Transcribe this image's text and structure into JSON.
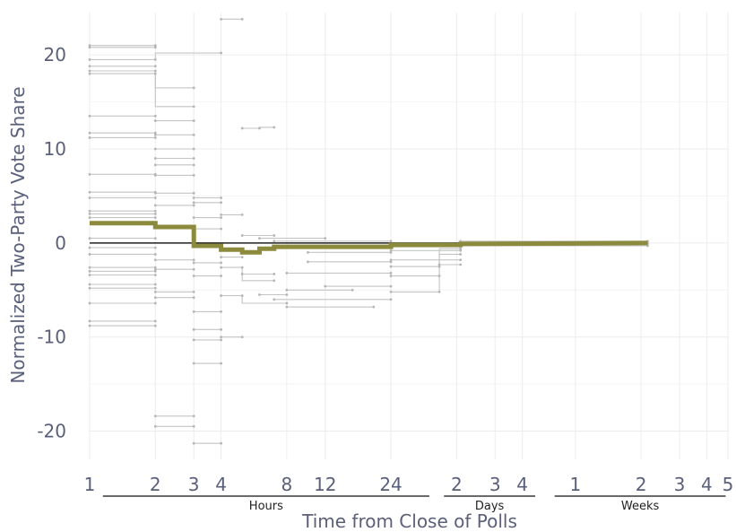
{
  "chart_data": {
    "type": "line",
    "title": "",
    "xlabel": "Time from Close of Polls",
    "ylabel": "Normalized Two-Party Vote Share",
    "x_scale": "log",
    "x_unit": "hours",
    "xlim": [
      1,
      840
    ],
    "ylim": [
      -23,
      24.5
    ],
    "grid": true,
    "legend": "none",
    "colors": {
      "mean": "#8c8a3c",
      "unit": "#c4c4c4",
      "zero": "#222222",
      "grid": "#ececec",
      "text": "#5a607a"
    },
    "y_ticks": [
      -20,
      -10,
      0,
      10,
      20
    ],
    "x_ticks": [
      {
        "label": "1",
        "hours": 1
      },
      {
        "label": "2",
        "hours": 2
      },
      {
        "label": "3",
        "hours": 3
      },
      {
        "label": "4",
        "hours": 4
      },
      {
        "label": "8",
        "hours": 8
      },
      {
        "label": "12",
        "hours": 12
      },
      {
        "label": "24",
        "hours": 24
      },
      {
        "label": "2",
        "hours": 48
      },
      {
        "label": "3",
        "hours": 72
      },
      {
        "label": "4",
        "hours": 96
      },
      {
        "label": "1",
        "hours": 168
      },
      {
        "label": "2",
        "hours": 336
      },
      {
        "label": "3",
        "hours": 504
      },
      {
        "label": "4",
        "hours": 672
      },
      {
        "label": "5",
        "hours": 840
      }
    ],
    "x_groups": [
      {
        "label": "Hours",
        "from": 1.15,
        "to": 36
      },
      {
        "label": "Days",
        "from": 42,
        "to": 110
      },
      {
        "label": "Weeks",
        "from": 135,
        "to": 820
      }
    ],
    "mean_series": {
      "name": "",
      "x": [
        1,
        2,
        2,
        3,
        3,
        4,
        4,
        5,
        5,
        6,
        6,
        7,
        7,
        24,
        24,
        50,
        50,
        360
      ],
      "y": [
        2.1,
        2.1,
        1.7,
        1.7,
        -0.3,
        -0.3,
        -0.7,
        -0.7,
        -1.0,
        -1.0,
        -0.6,
        -0.6,
        -0.4,
        -0.4,
        -0.2,
        -0.2,
        -0.1,
        0.0
      ]
    },
    "unit_series": [
      {
        "x": [
          1,
          2
        ],
        "y": [
          21.0,
          21.0
        ]
      },
      {
        "x": [
          1,
          2
        ],
        "y": [
          20.8,
          20.8
        ]
      },
      {
        "x": [
          1,
          2,
          2,
          4
        ],
        "y": [
          19.5,
          19.5,
          20.2,
          20.2
        ]
      },
      {
        "x": [
          1,
          2
        ],
        "y": [
          18.8,
          18.8
        ]
      },
      {
        "x": [
          1,
          2,
          2,
          3
        ],
        "y": [
          18.3,
          18.3,
          16.5,
          16.5
        ]
      },
      {
        "x": [
          1,
          2,
          2,
          3
        ],
        "y": [
          18.0,
          18.0,
          14.5,
          14.5
        ]
      },
      {
        "x": [
          1,
          2
        ],
        "y": [
          13.5,
          13.5
        ]
      },
      {
        "x": [
          1,
          2
        ],
        "y": [
          11.7,
          11.7
        ]
      },
      {
        "x": [
          1,
          2
        ],
        "y": [
          11.2,
          11.2
        ]
      },
      {
        "x": [
          1,
          2
        ],
        "y": [
          7.3,
          7.3
        ]
      },
      {
        "x": [
          1,
          2
        ],
        "y": [
          5.4,
          5.4
        ]
      },
      {
        "x": [
          1,
          2
        ],
        "y": [
          4.8,
          4.8
        ]
      },
      {
        "x": [
          1,
          2
        ],
        "y": [
          3.4,
          3.4
        ]
      },
      {
        "x": [
          1,
          2
        ],
        "y": [
          3.1,
          3.1
        ]
      },
      {
        "x": [
          1,
          2
        ],
        "y": [
          2.7,
          2.7
        ]
      },
      {
        "x": [
          1,
          2
        ],
        "y": [
          0.5,
          0.5
        ]
      },
      {
        "x": [
          1,
          2
        ],
        "y": [
          -0.5,
          -0.5
        ]
      },
      {
        "x": [
          1,
          2
        ],
        "y": [
          -1.2,
          -1.2
        ]
      },
      {
        "x": [
          1,
          2
        ],
        "y": [
          -2.6,
          -2.6
        ]
      },
      {
        "x": [
          1,
          2
        ],
        "y": [
          -3.0,
          -3.0
        ]
      },
      {
        "x": [
          1,
          2
        ],
        "y": [
          -3.4,
          -3.4
        ]
      },
      {
        "x": [
          1,
          2
        ],
        "y": [
          -4.4,
          -4.4
        ]
      },
      {
        "x": [
          1,
          2
        ],
        "y": [
          -4.8,
          -4.8
        ]
      },
      {
        "x": [
          1,
          2
        ],
        "y": [
          -6.4,
          -6.4
        ]
      },
      {
        "x": [
          1,
          2
        ],
        "y": [
          -8.3,
          -8.3
        ]
      },
      {
        "x": [
          1,
          2
        ],
        "y": [
          -8.8,
          -8.8
        ]
      },
      {
        "x": [
          2,
          3
        ],
        "y": [
          13.0,
          13.0
        ]
      },
      {
        "x": [
          2,
          3
        ],
        "y": [
          11.5,
          11.5
        ]
      },
      {
        "x": [
          2,
          3
        ],
        "y": [
          10.0,
          10.0
        ]
      },
      {
        "x": [
          2,
          3
        ],
        "y": [
          9.0,
          9.0
        ]
      },
      {
        "x": [
          2,
          3
        ],
        "y": [
          8.3,
          8.3
        ]
      },
      {
        "x": [
          2,
          3
        ],
        "y": [
          7.2,
          7.2
        ]
      },
      {
        "x": [
          2,
          3
        ],
        "y": [
          5.3,
          5.3
        ]
      },
      {
        "x": [
          2,
          3
        ],
        "y": [
          4.0,
          4.0
        ]
      },
      {
        "x": [
          2,
          3
        ],
        "y": [
          -1.8,
          -1.8
        ]
      },
      {
        "x": [
          2,
          3
        ],
        "y": [
          -2.8,
          -2.8
        ]
      },
      {
        "x": [
          2,
          3
        ],
        "y": [
          -5.2,
          -5.2
        ]
      },
      {
        "x": [
          2,
          3
        ],
        "y": [
          -5.8,
          -5.8
        ]
      },
      {
        "x": [
          2,
          3
        ],
        "y": [
          -18.4,
          -18.4
        ]
      },
      {
        "x": [
          2,
          3
        ],
        "y": [
          -19.5,
          -19.5
        ]
      },
      {
        "x": [
          3,
          4
        ],
        "y": [
          4.8,
          4.8
        ]
      },
      {
        "x": [
          3,
          4
        ],
        "y": [
          4.3,
          4.3
        ]
      },
      {
        "x": [
          3,
          4
        ],
        "y": [
          2.7,
          2.7
        ]
      },
      {
        "x": [
          3,
          4
        ],
        "y": [
          1.5,
          1.5
        ]
      },
      {
        "x": [
          3,
          4
        ],
        "y": [
          -2.1,
          -2.1
        ]
      },
      {
        "x": [
          3,
          4
        ],
        "y": [
          -3.5,
          -3.5
        ]
      },
      {
        "x": [
          3,
          4
        ],
        "y": [
          -7.3,
          -7.3
        ]
      },
      {
        "x": [
          3,
          4
        ],
        "y": [
          -9.2,
          -9.2
        ]
      },
      {
        "x": [
          3,
          4
        ],
        "y": [
          -10.3,
          -10.3
        ]
      },
      {
        "x": [
          3,
          4
        ],
        "y": [
          -12.8,
          -12.8
        ]
      },
      {
        "x": [
          3,
          4
        ],
        "y": [
          -21.3,
          -21.3
        ]
      },
      {
        "x": [
          4,
          5
        ],
        "y": [
          23.8,
          23.8
        ]
      },
      {
        "x": [
          4,
          5
        ],
        "y": [
          3.0,
          3.0
        ]
      },
      {
        "x": [
          4,
          5
        ],
        "y": [
          -1.5,
          -1.5
        ]
      },
      {
        "x": [
          4,
          5
        ],
        "y": [
          -10.0,
          -10.0
        ]
      },
      {
        "x": [
          4,
          5,
          5,
          7
        ],
        "y": [
          -2.6,
          -2.6,
          -4.0,
          -4.0
        ]
      },
      {
        "x": [
          4,
          5,
          5,
          8
        ],
        "y": [
          -5.6,
          -5.6,
          -6.4,
          -6.4
        ]
      },
      {
        "x": [
          5,
          6,
          6,
          7
        ],
        "y": [
          12.2,
          12.2,
          12.3,
          12.3
        ]
      },
      {
        "x": [
          5,
          7
        ],
        "y": [
          0.8,
          0.8
        ]
      },
      {
        "x": [
          5,
          7
        ],
        "y": [
          -3.3,
          -3.3
        ]
      },
      {
        "x": [
          6,
          8
        ],
        "y": [
          -5.5,
          -5.5
        ]
      },
      {
        "x": [
          6,
          12
        ],
        "y": [
          0.5,
          0.5
        ]
      },
      {
        "x": [
          7,
          24
        ],
        "y": [
          -6.0,
          -6.0
        ]
      },
      {
        "x": [
          7,
          24
        ],
        "y": [
          0.2,
          0.2
        ]
      },
      {
        "x": [
          8,
          24
        ],
        "y": [
          -3.2,
          -3.2
        ]
      },
      {
        "x": [
          8,
          16
        ],
        "y": [
          -5.0,
          -5.0
        ]
      },
      {
        "x": [
          8,
          20
        ],
        "y": [
          -6.8,
          -6.8
        ]
      },
      {
        "x": [
          10,
          24
        ],
        "y": [
          -1.0,
          -1.0
        ]
      },
      {
        "x": [
          10,
          24
        ],
        "y": [
          -2.0,
          -2.0
        ]
      },
      {
        "x": [
          12,
          24
        ],
        "y": [
          -4.6,
          -4.6
        ]
      },
      {
        "x": [
          12,
          24
        ],
        "y": [
          -0.3,
          -0.3
        ]
      },
      {
        "x": [
          24,
          40,
          40,
          50
        ],
        "y": [
          -5.2,
          -5.2,
          -1.2,
          -1.2
        ]
      },
      {
        "x": [
          24,
          40
        ],
        "y": [
          -3.5,
          -3.5
        ]
      },
      {
        "x": [
          24,
          40,
          40,
          50
        ],
        "y": [
          -2.5,
          -2.5,
          -0.6,
          -0.6
        ]
      },
      {
        "x": [
          24,
          50
        ],
        "y": [
          -1.8,
          -1.8
        ]
      },
      {
        "x": [
          24,
          50
        ],
        "y": [
          -0.8,
          -0.8
        ]
      },
      {
        "x": [
          24,
          50
        ],
        "y": [
          -0.4,
          -0.4
        ]
      },
      {
        "x": [
          40,
          50
        ],
        "y": [
          -2.3,
          -2.3
        ]
      },
      {
        "x": [
          50,
          360
        ],
        "y": [
          -0.3,
          -0.3
        ]
      },
      {
        "x": [
          50,
          360
        ],
        "y": [
          -0.1,
          -0.1
        ]
      },
      {
        "x": [
          50,
          360
        ],
        "y": [
          0.1,
          0.1
        ]
      },
      {
        "x": [
          50,
          360
        ],
        "y": [
          0.2,
          0.2
        ]
      }
    ]
  }
}
